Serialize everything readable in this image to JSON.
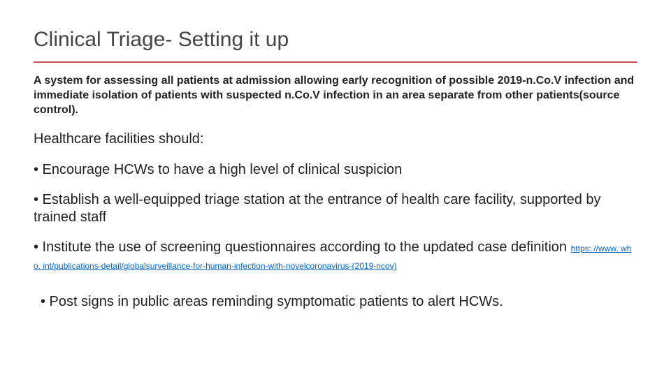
{
  "slide": {
    "title": "Clinical Triage- Setting it up",
    "divider_color": "#c0504d",
    "intro": "A system for assessing all patients at admission allowing early recognition of possible 2019-n.Co.V infection and immediate isolation of patients with suspected n.Co.V infection in an area separate from other patients(source control).",
    "lead": "Healthcare facilities should:",
    "bullets": [
      "• Encourage HCWs to have a high level of clinical suspicion",
      "• Establish a well-equipped triage station at the entrance of health care facility, supported by trained staff",
      "• Institute the use of screening questionnaires according to the updated case definition ",
      "• Post signs in public areas reminding symptomatic patients to alert HCWs."
    ],
    "link_text": "https: //www. who. int/publications-detail/globalsurveillance-for-human-infection-with-novelcoronavirus-(2019-ncov)",
    "colors": {
      "background": "#ffffff",
      "title_color": "#444444",
      "text_color": "#222222",
      "link_color": "#0563c1"
    },
    "typography": {
      "title_fontsize": 30,
      "title_weight": 300,
      "intro_fontsize": 16,
      "intro_weight": 700,
      "body_fontsize": 20,
      "body_weight": 400,
      "link_fontsize": 12
    }
  }
}
